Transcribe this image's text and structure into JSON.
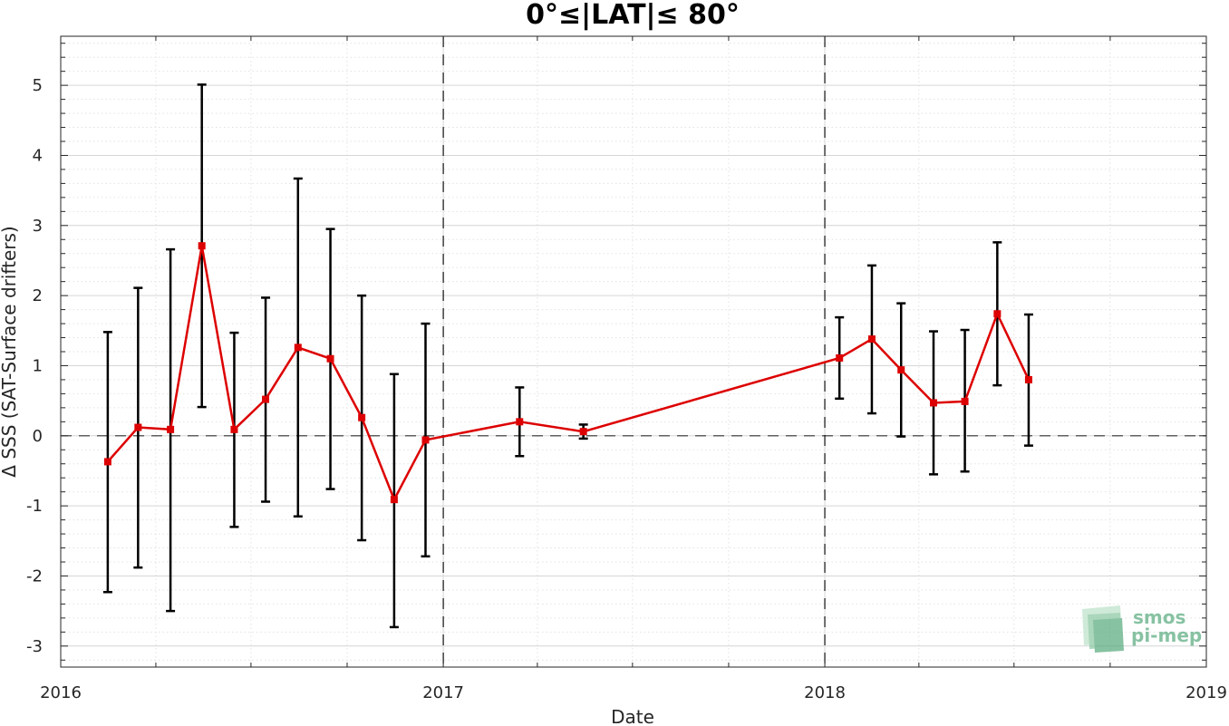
{
  "chart_data": {
    "type": "line",
    "title": "0°≤|LAT|≤ 80°",
    "xlabel": "Date",
    "ylabel": "Δ SSS (SAT-Surface drifters)",
    "xlim": [
      "2016-01-01",
      "2019-01-01"
    ],
    "ylim": [
      -3.3,
      5.7
    ],
    "x_ticks": [
      "2016",
      "2017",
      "2018",
      "2019"
    ],
    "y_ticks": [
      -3,
      -2,
      -1,
      0,
      1,
      2,
      3,
      4,
      5
    ],
    "grid": true,
    "reference_lines": {
      "horizontal_dashed_y": 0,
      "vertical_dashed_x": [
        "2017-01-01",
        "2018-01-01"
      ]
    },
    "series": [
      {
        "color": "#dd0000",
        "marker": "square",
        "points": [
          {
            "x": "2016-02-15",
            "y": -0.37,
            "y_low": -2.23,
            "y_high": 1.48
          },
          {
            "x": "2016-03-15",
            "y": 0.12,
            "y_low": -1.88,
            "y_high": 2.11
          },
          {
            "x": "2016-04-15",
            "y": 0.09,
            "y_low": -2.5,
            "y_high": 2.66
          },
          {
            "x": "2016-05-15",
            "y": 2.71,
            "y_low": 0.41,
            "y_high": 5.01
          },
          {
            "x": "2016-06-15",
            "y": 0.09,
            "y_low": -1.3,
            "y_high": 1.47
          },
          {
            "x": "2016-07-15",
            "y": 0.52,
            "y_low": -0.94,
            "y_high": 1.97
          },
          {
            "x": "2016-08-15",
            "y": 1.26,
            "y_low": -1.15,
            "y_high": 3.67
          },
          {
            "x": "2016-09-15",
            "y": 1.1,
            "y_low": -0.76,
            "y_high": 2.95
          },
          {
            "x": "2016-10-15",
            "y": 0.26,
            "y_low": -1.49,
            "y_high": 2.0
          },
          {
            "x": "2016-11-15",
            "y": -0.91,
            "y_low": -2.73,
            "y_high": 0.88
          },
          {
            "x": "2016-12-15",
            "y": -0.06,
            "y_low": -1.72,
            "y_high": 1.6
          },
          {
            "x": "2017-03-15",
            "y": 0.2,
            "y_low": -0.29,
            "y_high": 0.69
          },
          {
            "x": "2017-05-15",
            "y": 0.06,
            "y_low": -0.04,
            "y_high": 0.16
          },
          {
            "x": "2018-01-15",
            "y": 1.11,
            "y_low": 0.53,
            "y_high": 1.69
          },
          {
            "x": "2018-02-15",
            "y": 1.38,
            "y_low": 0.32,
            "y_high": 2.43
          },
          {
            "x": "2018-03-15",
            "y": 0.94,
            "y_low": -0.01,
            "y_high": 1.89
          },
          {
            "x": "2018-04-15",
            "y": 0.47,
            "y_low": -0.55,
            "y_high": 1.49
          },
          {
            "x": "2018-05-15",
            "y": 0.49,
            "y_low": -0.51,
            "y_high": 1.51
          },
          {
            "x": "2018-06-15",
            "y": 1.74,
            "y_low": 0.72,
            "y_high": 2.76
          },
          {
            "x": "2018-07-15",
            "y": 0.8,
            "y_low": -0.14,
            "y_high": 1.73
          }
        ]
      }
    ]
  },
  "logo": {
    "line1": "smos",
    "line2": "pi-mep",
    "color": "#5fae84"
  }
}
